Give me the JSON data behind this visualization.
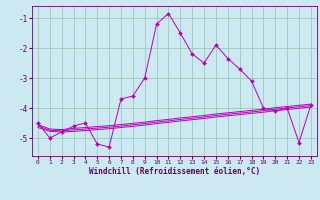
{
  "xlabel": "Windchill (Refroidissement éolien,°C)",
  "bg_color": "#cce8f0",
  "grid_color": "#99ccbb",
  "line_color": "#bb00bb",
  "spine_color": "#660066",
  "xlim": [
    -0.5,
    23.5
  ],
  "ylim": [
    -5.6,
    -0.6
  ],
  "yticks": [
    -5,
    -4,
    -3,
    -2,
    -1
  ],
  "xticks": [
    0,
    1,
    2,
    3,
    4,
    5,
    6,
    7,
    8,
    9,
    10,
    11,
    12,
    13,
    14,
    15,
    16,
    17,
    18,
    19,
    20,
    21,
    22,
    23
  ],
  "main_x": [
    0,
    1,
    2,
    3,
    4,
    5,
    6,
    7,
    8,
    9,
    10,
    11,
    12,
    13,
    14,
    15,
    16,
    17,
    18,
    19,
    20,
    21,
    22,
    23
  ],
  "main_y": [
    -4.5,
    -5.0,
    -4.8,
    -4.6,
    -4.5,
    -5.2,
    -5.3,
    -3.7,
    -3.6,
    -3.0,
    -1.2,
    -0.85,
    -1.5,
    -2.2,
    -2.5,
    -1.9,
    -2.35,
    -2.7,
    -3.1,
    -4.0,
    -4.1,
    -4.0,
    -5.15,
    -3.9
  ],
  "line2_y": [
    -4.55,
    -4.7,
    -4.72,
    -4.68,
    -4.65,
    -4.62,
    -4.59,
    -4.55,
    -4.51,
    -4.47,
    -4.42,
    -4.38,
    -4.33,
    -4.29,
    -4.25,
    -4.2,
    -4.16,
    -4.12,
    -4.08,
    -4.04,
    -3.99,
    -3.95,
    -3.91,
    -3.87
  ],
  "line3_y": [
    -4.6,
    -4.74,
    -4.76,
    -4.73,
    -4.7,
    -4.67,
    -4.64,
    -4.6,
    -4.56,
    -4.52,
    -4.47,
    -4.43,
    -4.38,
    -4.34,
    -4.3,
    -4.25,
    -4.21,
    -4.17,
    -4.13,
    -4.09,
    -4.04,
    -4.0,
    -3.96,
    -3.92
  ],
  "line4_y": [
    -4.65,
    -4.78,
    -4.8,
    -4.78,
    -4.75,
    -4.72,
    -4.69,
    -4.65,
    -4.61,
    -4.57,
    -4.52,
    -4.48,
    -4.43,
    -4.39,
    -4.35,
    -4.3,
    -4.26,
    -4.22,
    -4.18,
    -4.14,
    -4.09,
    -4.05,
    -4.01,
    -3.97
  ]
}
